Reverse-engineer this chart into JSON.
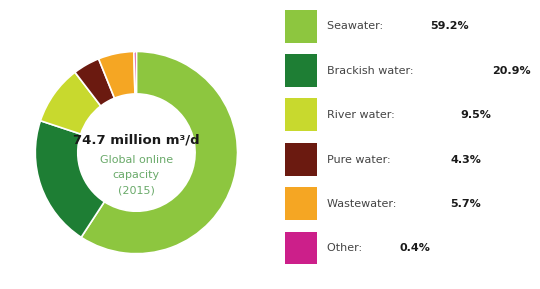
{
  "title_bold": "74.7 million m³/d",
  "title_sub": "Global online\ncapacity\n(2015)",
  "slices": [
    59.2,
    20.9,
    9.5,
    4.3,
    5.7,
    0.4
  ],
  "colors": [
    "#8dc63f",
    "#1e7e34",
    "#c8d92e",
    "#6b1a10",
    "#f5a623",
    "#cc1f8a"
  ],
  "labels": [
    "Seawater",
    "Brackish water",
    "River water",
    "Pure water",
    "Wastewater",
    "Other"
  ],
  "legend_normal": [
    "Seawater: ",
    "Brackish water: ",
    "River water: ",
    "Pure water: ",
    "Wastewater: ",
    "Other: "
  ],
  "legend_bold": [
    "59.2%",
    "20.9%",
    "9.5%",
    "4.3%",
    "5.7%",
    "0.4%"
  ],
  "background": "#ffffff",
  "startangle": 90
}
